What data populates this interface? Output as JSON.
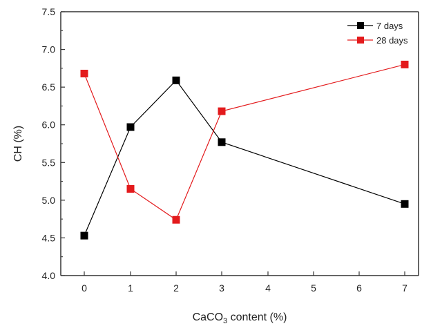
{
  "chart_data": {
    "type": "line",
    "categories": [
      "0",
      "1",
      "2",
      "3",
      "4",
      "5",
      "6",
      "7"
    ],
    "series": [
      {
        "name": "7 days",
        "color": "#000000",
        "points": [
          {
            "x": "0",
            "y": 4.53
          },
          {
            "x": "1",
            "y": 5.97
          },
          {
            "x": "2",
            "y": 6.59
          },
          {
            "x": "3",
            "y": 5.77
          },
          {
            "x": "7",
            "y": 4.95
          }
        ]
      },
      {
        "name": "28 days",
        "color": "#e31a1c",
        "points": [
          {
            "x": "0",
            "y": 6.68
          },
          {
            "x": "1",
            "y": 5.15
          },
          {
            "x": "2",
            "y": 4.74
          },
          {
            "x": "3",
            "y": 6.18
          },
          {
            "x": "7",
            "y": 6.8
          }
        ]
      }
    ],
    "xlabel_main": "CaCO",
    "xlabel_sub": "3",
    "xlabel_rest": " content (%)",
    "ylabel": "CH (%)",
    "ylim": [
      4.0,
      7.5
    ],
    "yticks": [
      "4.0",
      "4.5",
      "5.0",
      "5.5",
      "6.0",
      "6.5",
      "7.0",
      "7.5"
    ],
    "grid": false,
    "legend_position": "top-right"
  }
}
